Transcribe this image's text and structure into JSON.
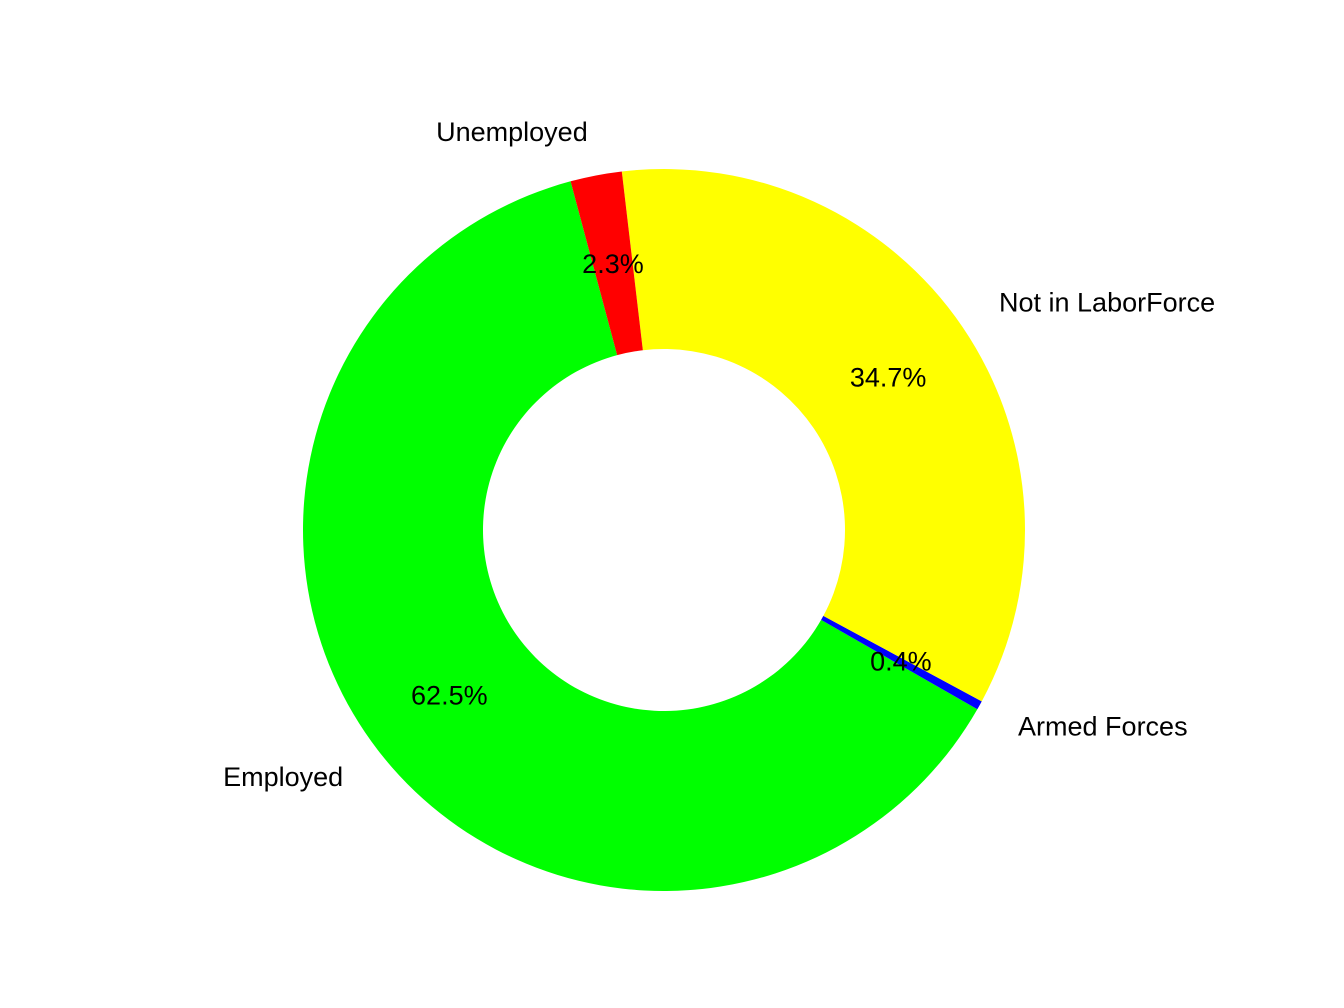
{
  "chart_data": {
    "type": "pie",
    "donut": true,
    "title": "",
    "series": [
      {
        "name": "Employed",
        "value": 62.5,
        "label": "62.5%",
        "color": "#00FF00"
      },
      {
        "name": "Armed Forces",
        "value": 0.4,
        "label": "0.4%",
        "color": "#0000FF"
      },
      {
        "name": "Not in LaborForce",
        "value": 34.7,
        "label": "34.7%",
        "color": "#FFFF00"
      },
      {
        "name": "Unemployed",
        "value": 2.3,
        "label": "2.3%",
        "color": "#FF0000"
      }
    ],
    "legend": "none"
  }
}
